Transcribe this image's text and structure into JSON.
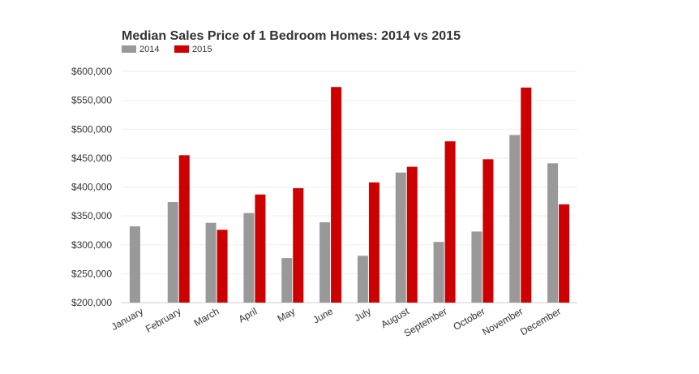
{
  "chart_data": {
    "type": "bar",
    "title": "Median Sales Price of 1 Bedroom Homes: 2014 vs 2015",
    "xlabel": "",
    "ylabel": "",
    "ylim": [
      200000,
      600000
    ],
    "grid": true,
    "legend_position": "top-left",
    "categories": [
      "January",
      "February",
      "March",
      "April",
      "May",
      "June",
      "July",
      "August",
      "September",
      "October",
      "November",
      "December"
    ],
    "y_ticks": [
      200000,
      250000,
      300000,
      350000,
      400000,
      450000,
      500000,
      550000,
      600000
    ],
    "y_tick_labels": [
      "$200,000",
      "$250,000",
      "$300,000",
      "$350,000",
      "$400,000",
      "$450,000",
      "$500,000",
      "$550,000",
      "$600,000"
    ],
    "series": [
      {
        "name": "2014",
        "color": "#999999",
        "values": [
          332000,
          374000,
          338000,
          355000,
          277000,
          339000,
          281000,
          425000,
          305000,
          323000,
          490000,
          441000
        ]
      },
      {
        "name": "2015",
        "color": "#cc0000",
        "values": [
          null,
          455000,
          326000,
          387000,
          398000,
          573000,
          408000,
          435000,
          479000,
          448000,
          572000,
          370000
        ]
      }
    ]
  }
}
